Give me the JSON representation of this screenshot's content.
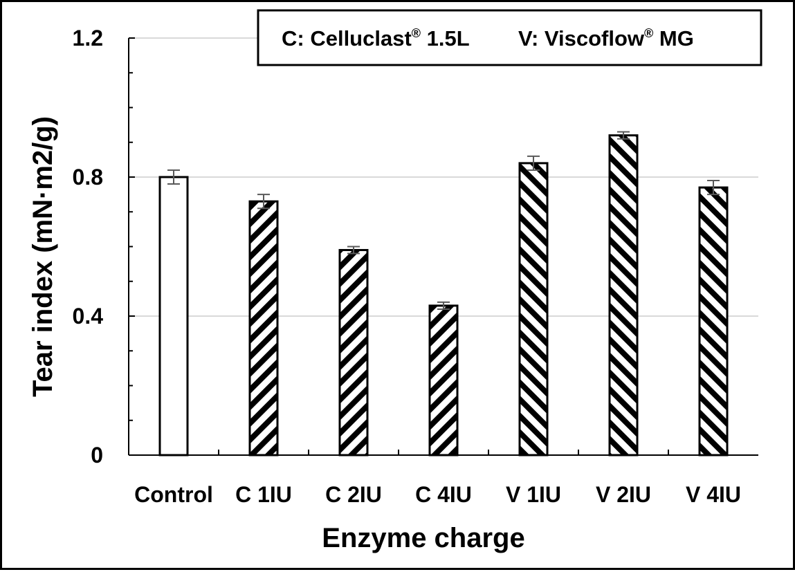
{
  "chart_data": {
    "type": "bar",
    "categories": [
      "Control",
      "C 1IU",
      "C 2IU",
      "C 4IU",
      "V 1IU",
      "V 2IU",
      "V 4IU"
    ],
    "values": [
      0.8,
      0.73,
      0.59,
      0.43,
      0.84,
      0.92,
      0.77
    ],
    "errors": [
      0.02,
      0.02,
      0.01,
      0.01,
      0.02,
      0.01,
      0.02
    ],
    "patterns": [
      "none",
      "hatch-right",
      "hatch-right",
      "hatch-right",
      "hatch-left",
      "hatch-left",
      "hatch-left"
    ],
    "xlabel": "Enzyme charge",
    "ylabel": "Tear index (mN·m2/g)",
    "ylim": [
      0,
      1.2
    ],
    "yticks": [
      0,
      0.4,
      0.8,
      1.2
    ],
    "ytick_labels": [
      "0",
      "0.4",
      "0.8",
      "1.2"
    ],
    "grid": true,
    "annotation": {
      "c_part": "C: Celluclast",
      "c_reg": "®",
      "c_rest": " 1.5L",
      "v_part": "V: Viscoflow",
      "v_reg": "®",
      "v_rest": " MG"
    },
    "colors": {
      "bar_stroke": "#000000",
      "bar_fill": "#ffffff",
      "error_bar": "#595959",
      "grid": "#d9d9d9"
    }
  }
}
